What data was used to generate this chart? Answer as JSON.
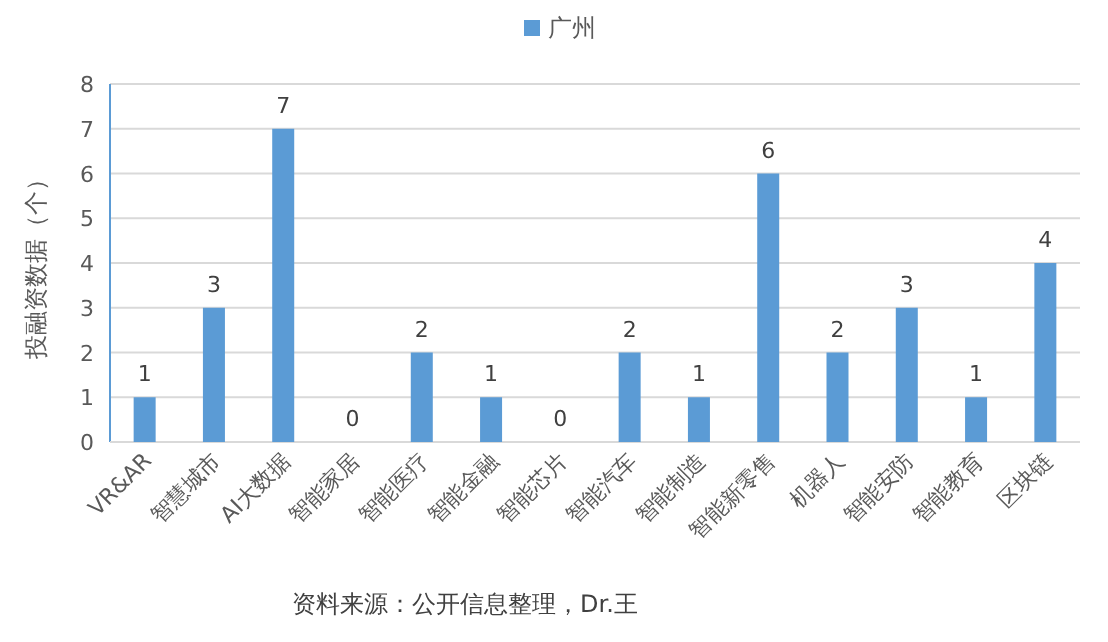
{
  "chart_data": {
    "type": "bar",
    "categories": [
      "VR&AR",
      "智慧城市",
      "AI大数据",
      "智能家居",
      "智能医疗",
      "智能金融",
      "智能芯片",
      "智能汽车",
      "智能制造",
      "智能新零售",
      "机器人",
      "智能安防",
      "智能教育",
      "区块链"
    ],
    "series": [
      {
        "name": "广州",
        "color": "#5b9bd5",
        "values": [
          1,
          3,
          7,
          0,
          2,
          1,
          0,
          2,
          1,
          6,
          2,
          3,
          1,
          4
        ]
      }
    ],
    "ylabel": "投融资数据（个）",
    "annotations": [
      "资料来源：公开信息整理，Dr.王"
    ],
    "ylim": [
      0,
      8
    ],
    "yticks": [
      0,
      1,
      2,
      3,
      4,
      5,
      6,
      7,
      8
    ],
    "grid": "y",
    "legend": "top",
    "data_labels": true
  }
}
